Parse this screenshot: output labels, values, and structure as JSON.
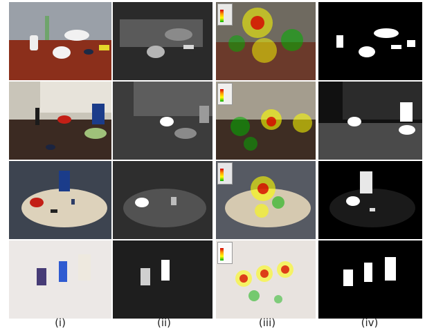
{
  "figure": {
    "column_labels": [
      "(i)",
      "(ii)",
      "(iii)",
      "(iv)"
    ],
    "columns": [
      {
        "name": "original-photo"
      },
      {
        "name": "grayscale-saliency-map"
      },
      {
        "name": "heatmap-overlay"
      },
      {
        "name": "binary-mask"
      }
    ],
    "rows": [
      {
        "scene": "desk-with-cups-and-bowls"
      },
      {
        "scene": "desk-near-window-blinds"
      },
      {
        "scene": "round-table-with-objects"
      },
      {
        "scene": "white-table-with-containers"
      }
    ],
    "heatmap_colors": [
      "#d40000",
      "#ff9a00",
      "#ffff00",
      "#00b000"
    ]
  }
}
